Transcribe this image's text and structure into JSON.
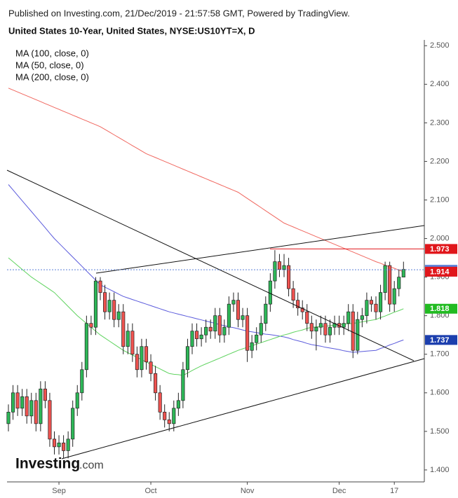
{
  "chart_data": {
    "type": "candlestick",
    "header": "Published on Investing.com, 21/Dec/2019 - 21:57:58 GMT, Powered by TradingView.",
    "title": "United States 10-Year, United States, NYSE:US10YT=X, D",
    "logo": [
      "Investing",
      ".com"
    ],
    "categories": [
      null,
      null,
      null,
      null,
      null,
      null,
      null,
      null,
      null,
      null,
      null,
      "Sep",
      null,
      null,
      null,
      null,
      null,
      null,
      null,
      null,
      null,
      null,
      null,
      null,
      null,
      null,
      null,
      null,
      null,
      null,
      null,
      "Oct",
      null,
      null,
      null,
      null,
      null,
      null,
      null,
      null,
      null,
      null,
      null,
      null,
      null,
      null,
      null,
      null,
      null,
      null,
      null,
      null,
      "Nov",
      null,
      null,
      null,
      null,
      null,
      null,
      null,
      null,
      null,
      null,
      null,
      null,
      null,
      null,
      null,
      null,
      null,
      null,
      null,
      "Dec",
      null,
      null,
      null,
      null,
      null,
      null,
      null,
      null,
      null,
      null,
      null,
      "17",
      null,
      null
    ],
    "open": [
      1.52,
      1.55,
      1.6,
      1.56,
      1.59,
      1.54,
      1.58,
      1.52,
      1.61,
      1.58,
      1.48,
      1.46,
      1.47,
      1.45,
      1.48,
      1.56,
      1.6,
      1.66,
      1.78,
      1.77,
      1.89,
      1.86,
      1.81,
      1.84,
      1.79,
      1.81,
      1.72,
      1.76,
      1.7,
      1.66,
      1.72,
      1.68,
      1.65,
      1.6,
      1.55,
      1.53,
      1.52,
      1.56,
      1.58,
      1.66,
      1.72,
      1.76,
      1.74,
      1.75,
      1.77,
      1.76,
      1.8,
      1.75,
      1.77,
      1.83,
      1.84,
      1.79,
      1.8,
      1.71,
      1.73,
      1.75,
      1.78,
      1.83,
      1.89,
      1.94,
      1.92,
      1.93,
      1.87,
      1.84,
      1.82,
      1.81,
      1.78,
      1.76,
      1.77,
      1.78,
      1.75,
      1.77,
      1.78,
      1.77,
      1.78,
      1.81,
      1.71,
      1.79,
      1.8,
      1.84,
      1.83,
      1.81,
      1.86,
      1.93,
      1.83,
      1.87,
      1.9
    ],
    "high": [
      1.57,
      1.62,
      1.62,
      1.61,
      1.61,
      1.6,
      1.6,
      1.63,
      1.63,
      1.6,
      1.5,
      1.49,
      1.49,
      1.5,
      1.58,
      1.62,
      1.68,
      1.8,
      1.8,
      1.9,
      1.9,
      1.88,
      1.86,
      1.86,
      1.83,
      1.83,
      1.78,
      1.78,
      1.72,
      1.74,
      1.74,
      1.7,
      1.67,
      1.62,
      1.57,
      1.55,
      1.58,
      1.6,
      1.68,
      1.74,
      1.78,
      1.78,
      1.77,
      1.79,
      1.79,
      1.82,
      1.82,
      1.79,
      1.85,
      1.86,
      1.86,
      1.82,
      1.82,
      1.75,
      1.77,
      1.8,
      1.85,
      1.91,
      1.97,
      1.96,
      1.96,
      1.95,
      1.89,
      1.86,
      1.84,
      1.83,
      1.8,
      1.79,
      1.8,
      1.8,
      1.79,
      1.8,
      1.8,
      1.8,
      1.83,
      1.83,
      1.81,
      1.82,
      1.86,
      1.85,
      1.85,
      1.88,
      1.94,
      1.94,
      1.89,
      1.92,
      1.94
    ],
    "low": [
      1.5,
      1.53,
      1.54,
      1.54,
      1.52,
      1.52,
      1.5,
      1.5,
      1.56,
      1.46,
      1.44,
      1.44,
      1.43,
      1.43,
      1.46,
      1.54,
      1.58,
      1.64,
      1.75,
      1.75,
      1.84,
      1.79,
      1.79,
      1.77,
      1.77,
      1.7,
      1.7,
      1.68,
      1.64,
      1.64,
      1.66,
      1.63,
      1.58,
      1.53,
      1.51,
      1.5,
      1.5,
      1.54,
      1.56,
      1.64,
      1.7,
      1.72,
      1.72,
      1.73,
      1.74,
      1.74,
      1.73,
      1.73,
      1.75,
      1.81,
      1.77,
      1.77,
      1.68,
      1.69,
      1.71,
      1.73,
      1.76,
      1.81,
      1.87,
      1.9,
      1.9,
      1.85,
      1.82,
      1.8,
      1.79,
      1.76,
      1.74,
      1.71,
      1.75,
      1.73,
      1.73,
      1.75,
      1.75,
      1.75,
      1.76,
      1.69,
      1.7,
      1.77,
      1.78,
      1.81,
      1.79,
      1.79,
      1.84,
      1.81,
      1.81,
      1.85,
      1.9
    ],
    "close": [
      1.55,
      1.6,
      1.56,
      1.59,
      1.54,
      1.58,
      1.52,
      1.61,
      1.58,
      1.48,
      1.46,
      1.47,
      1.45,
      1.48,
      1.56,
      1.6,
      1.66,
      1.78,
      1.77,
      1.89,
      1.86,
      1.81,
      1.84,
      1.79,
      1.81,
      1.72,
      1.76,
      1.7,
      1.66,
      1.72,
      1.68,
      1.65,
      1.6,
      1.55,
      1.53,
      1.52,
      1.56,
      1.58,
      1.66,
      1.72,
      1.76,
      1.74,
      1.75,
      1.77,
      1.76,
      1.8,
      1.75,
      1.77,
      1.83,
      1.84,
      1.79,
      1.8,
      1.71,
      1.73,
      1.75,
      1.78,
      1.83,
      1.89,
      1.94,
      1.92,
      1.93,
      1.87,
      1.84,
      1.82,
      1.81,
      1.78,
      1.76,
      1.77,
      1.78,
      1.75,
      1.77,
      1.78,
      1.77,
      1.78,
      1.81,
      1.71,
      1.79,
      1.8,
      1.84,
      1.83,
      1.81,
      1.86,
      1.93,
      1.83,
      1.87,
      1.9,
      1.92
    ],
    "up_color": "#2db757",
    "down_color": "#ef5350",
    "series": [
      {
        "name": "MA (100, close, 0)",
        "color": "#5b5bdc",
        "values": [
          2.14,
          2.126,
          2.112,
          2.098,
          2.084,
          2.07,
          2.056,
          2.042,
          2.028,
          2.014,
          2.0,
          1.988,
          1.976,
          1.964,
          1.952,
          1.94,
          1.928,
          1.916,
          1.904,
          1.892,
          1.88,
          1.874,
          1.868,
          1.862,
          1.856,
          1.85,
          1.846,
          1.842,
          1.838,
          1.834,
          1.83,
          1.826,
          1.822,
          1.818,
          1.814,
          1.81,
          1.807,
          1.804,
          1.801,
          1.798,
          1.795,
          1.792,
          1.789,
          1.786,
          1.783,
          1.78,
          1.777,
          1.774,
          1.771,
          1.769,
          1.766,
          1.763,
          1.76,
          1.758,
          1.756,
          1.754,
          1.752,
          1.751,
          1.749,
          1.747,
          1.745,
          1.742,
          1.738,
          1.735,
          1.732,
          1.728,
          1.725,
          1.723,
          1.721,
          1.718,
          1.716,
          1.714,
          1.712,
          1.709,
          1.707,
          1.705,
          1.706,
          1.707,
          1.708,
          1.709,
          1.71,
          1.715,
          1.719,
          1.724,
          1.728,
          1.733,
          1.737
        ]
      },
      {
        "name": "MA (50, close, 0)",
        "color": "#5fd35f",
        "values": [
          1.95,
          1.94,
          1.93,
          1.92,
          1.91,
          1.9,
          1.892,
          1.884,
          1.876,
          1.868,
          1.86,
          1.848,
          1.836,
          1.824,
          1.812,
          1.8,
          1.79,
          1.78,
          1.77,
          1.76,
          1.75,
          1.742,
          1.734,
          1.726,
          1.718,
          1.71,
          1.704,
          1.698,
          1.692,
          1.686,
          1.68,
          1.674,
          1.668,
          1.662,
          1.656,
          1.65,
          1.648,
          1.647,
          1.645,
          1.651,
          1.658,
          1.664,
          1.67,
          1.675,
          1.68,
          1.685,
          1.69,
          1.695,
          1.7,
          1.705,
          1.71,
          1.714,
          1.718,
          1.722,
          1.726,
          1.73,
          1.734,
          1.738,
          1.742,
          1.746,
          1.75,
          1.753,
          1.757,
          1.76,
          1.763,
          1.767,
          1.77,
          1.771,
          1.772,
          1.773,
          1.774,
          1.776,
          1.777,
          1.778,
          1.779,
          1.78,
          1.782,
          1.784,
          1.786,
          1.788,
          1.79,
          1.795,
          1.799,
          1.804,
          1.809,
          1.813,
          1.818
        ]
      },
      {
        "name": "MA (200, close, 0)",
        "color": "#f0675f",
        "values": [
          2.39,
          2.385,
          2.38,
          2.375,
          2.37,
          2.365,
          2.36,
          2.355,
          2.35,
          2.345,
          2.34,
          2.335,
          2.33,
          2.325,
          2.32,
          2.315,
          2.31,
          2.305,
          2.3,
          2.295,
          2.29,
          2.283,
          2.276,
          2.269,
          2.262,
          2.255,
          2.248,
          2.241,
          2.234,
          2.227,
          2.22,
          2.215,
          2.21,
          2.205,
          2.2,
          2.195,
          2.19,
          2.185,
          2.18,
          2.175,
          2.17,
          2.165,
          2.16,
          2.155,
          2.15,
          2.145,
          2.14,
          2.135,
          2.13,
          2.125,
          2.12,
          2.112,
          2.104,
          2.096,
          2.088,
          2.08,
          2.072,
          2.064,
          2.056,
          2.048,
          2.04,
          2.035,
          2.03,
          2.025,
          2.02,
          2.015,
          2.01,
          2.005,
          2.0,
          1.995,
          1.99,
          1.985,
          1.98,
          1.975,
          1.97,
          1.965,
          1.96,
          1.955,
          1.95,
          1.945,
          1.94,
          1.936,
          1.931,
          1.927,
          1.923,
          1.918,
          1.914
        ]
      }
    ],
    "markers": [
      {
        "value": 1.973,
        "color": "#e0161b"
      },
      {
        "value": 1.919,
        "color": "#5a7fd8"
      },
      {
        "value": 1.914,
        "color": "#e0161b"
      },
      {
        "value": 1.818,
        "color": "#22bb22"
      },
      {
        "value": 1.737,
        "color": "#1c3fae"
      }
    ],
    "ylim": [
      1.369,
      2.515
    ],
    "yticks": [
      {
        "value": 1.4,
        "label": "1.400"
      },
      {
        "value": 1.5,
        "label": "1.500"
      },
      {
        "value": 1.6,
        "label": "1.600"
      },
      {
        "value": 1.7,
        "label": "1.700"
      },
      {
        "value": 1.8,
        "label": "1.800"
      },
      {
        "value": 1.9,
        "label": "1.900"
      },
      {
        "value": 2.0,
        "label": "2.000"
      },
      {
        "value": 2.1,
        "label": "2.100"
      },
      {
        "value": 2.2,
        "label": "2.200"
      },
      {
        "value": 2.3,
        "label": "2.300"
      },
      {
        "value": 2.4,
        "label": "2.400"
      },
      {
        "value": 2.5,
        "label": "2.500"
      }
    ],
    "grid": false
  }
}
